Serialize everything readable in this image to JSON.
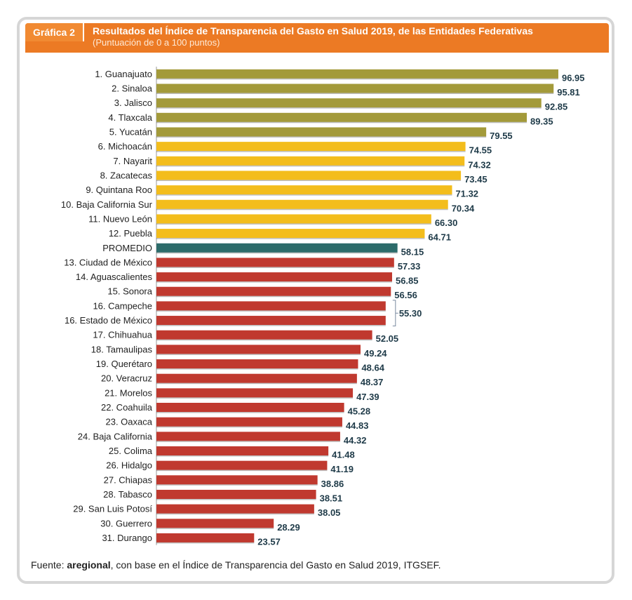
{
  "header": {
    "badge": "Gráfica 2",
    "title": "Resultados del Índice de Transparencia del Gasto en Salud 2019, de las Entidades Federativas",
    "subtitle": "(Puntuación de 0 a 100 puntos)"
  },
  "colors": {
    "top": "#a39a3a",
    "high": "#f3bd1c",
    "average": "#2c6b6a",
    "low": "#c0392f",
    "value_text": "#1e3a48",
    "header": "#ec7a24"
  },
  "chart_data": {
    "type": "bar",
    "orientation": "horizontal",
    "title": "Resultados del Índice de Transparencia del Gasto en Salud 2019, de las Entidades Federativas",
    "subtitle": "(Puntuación de 0 a 100 puntos)",
    "xlim": [
      0,
      100
    ],
    "grid": false,
    "legend": "none",
    "bars": [
      {
        "category": "1. Guanajuato",
        "value": 96.95,
        "label": "96.95",
        "group": "top"
      },
      {
        "category": "2. Sinaloa",
        "value": 95.81,
        "label": "95.81",
        "group": "top"
      },
      {
        "category": "3. Jalisco",
        "value": 92.85,
        "label": "92.85",
        "group": "top"
      },
      {
        "category": "4. Tlaxcala",
        "value": 89.35,
        "label": "89.35",
        "group": "top"
      },
      {
        "category": "5. Yucatán",
        "value": 79.55,
        "label": "79.55",
        "group": "top"
      },
      {
        "category": "6. Michoacán",
        "value": 74.55,
        "label": "74.55",
        "group": "high"
      },
      {
        "category": "7. Nayarit",
        "value": 74.32,
        "label": "74.32",
        "group": "high"
      },
      {
        "category": "8. Zacatecas",
        "value": 73.45,
        "label": "73.45",
        "group": "high"
      },
      {
        "category": "9. Quintana Roo",
        "value": 71.32,
        "label": "71.32",
        "group": "high"
      },
      {
        "category": "10. Baja California Sur",
        "value": 70.34,
        "label": "70.34",
        "group": "high"
      },
      {
        "category": "11. Nuevo León",
        "value": 66.3,
        "label": "66.30",
        "group": "high"
      },
      {
        "category": "12. Puebla",
        "value": 64.71,
        "label": "64.71",
        "group": "high"
      },
      {
        "category": "PROMEDIO",
        "value": 58.15,
        "label": "58.15",
        "group": "average"
      },
      {
        "category": "13. Ciudad de México",
        "value": 57.33,
        "label": "57.33",
        "group": "low"
      },
      {
        "category": "14. Aguascalientes",
        "value": 56.85,
        "label": "56.85",
        "group": "low"
      },
      {
        "category": "15. Sonora",
        "value": 56.56,
        "label": "56.56",
        "group": "low"
      },
      {
        "category": "16. Campeche",
        "value": 55.3,
        "label": "",
        "group": "low",
        "bracket": "start"
      },
      {
        "category": "16. Estado de México",
        "value": 55.3,
        "label": "",
        "group": "low",
        "bracket": "end"
      },
      {
        "category": "17. Chihuahua",
        "value": 52.05,
        "label": "52.05",
        "group": "low"
      },
      {
        "category": "18. Tamaulipas",
        "value": 49.24,
        "label": "49.24",
        "group": "low"
      },
      {
        "category": "19. Querétaro",
        "value": 48.64,
        "label": "48.64",
        "group": "low"
      },
      {
        "category": "20. Veracruz",
        "value": 48.37,
        "label": "48.37",
        "group": "low"
      },
      {
        "category": "21. Morelos",
        "value": 47.39,
        "label": "47.39",
        "group": "low"
      },
      {
        "category": "22. Coahuila",
        "value": 45.28,
        "label": "45.28",
        "group": "low"
      },
      {
        "category": "23. Oaxaca",
        "value": 44.83,
        "label": "44.83",
        "group": "low"
      },
      {
        "category": "24. Baja California",
        "value": 44.32,
        "label": "44.32",
        "group": "low"
      },
      {
        "category": "25. Colima",
        "value": 41.48,
        "label": "41.48",
        "group": "low"
      },
      {
        "category": "26. Hidalgo",
        "value": 41.19,
        "label": "41.19",
        "group": "low"
      },
      {
        "category": "27. Chiapas",
        "value": 38.86,
        "label": "38.86",
        "group": "low"
      },
      {
        "category": "28. Tabasco",
        "value": 38.51,
        "label": "38.51",
        "group": "low"
      },
      {
        "category": "29. San Luis Potosí",
        "value": 38.05,
        "label": "38.05",
        "group": "low"
      },
      {
        "category": "30. Guerrero",
        "value": 28.29,
        "label": "28.29",
        "group": "low"
      },
      {
        "category": "31. Durango",
        "value": 23.57,
        "label": "23.57",
        "group": "low"
      }
    ],
    "bracket_label": "55.30"
  },
  "source": {
    "prefix": "Fuente: ",
    "bold": "aregional",
    "rest": ", con base en el Índice de Transparencia del Gasto en Salud 2019, ITGSEF."
  }
}
